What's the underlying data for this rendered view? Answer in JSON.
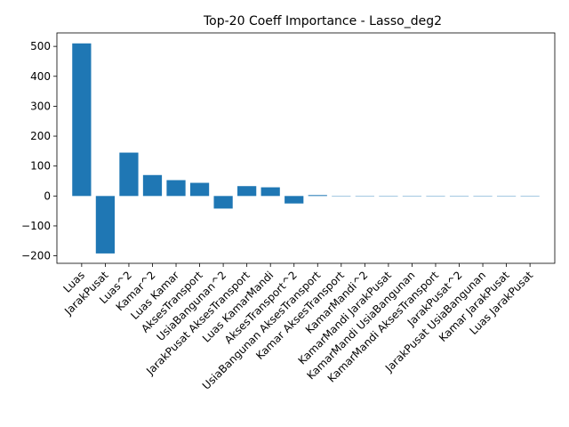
{
  "chart_data": {
    "type": "bar",
    "title": "Top-20 Coeff Importance - Lasso_deg2",
    "xlabel": "",
    "ylabel": "",
    "categories": [
      "Luas",
      "JarakPusat",
      "Luas^2",
      "Kamar^2",
      "Luas Kamar",
      "AksesTransport",
      "UsiaBangunan^2",
      "JarakPusat AksesTransport",
      "Luas KamarMandi",
      "AksesTransport^2",
      "UsiaBangunan AksesTransport",
      "Kamar AksesTransport",
      "KamarMandi^2",
      "KamarMandi JarakPusat",
      "KamarMandi UsiaBangunan",
      "KamarMandi AksesTransport",
      "JarakPusat^2",
      "JarakPusat UsiaBangunan",
      "Kamar JarakPusat",
      "Luas JarakPusat"
    ],
    "values": [
      510,
      -192,
      145,
      70,
      53,
      44,
      -42,
      33,
      29,
      -25,
      3,
      0,
      0,
      0,
      0,
      0,
      0,
      0,
      0,
      0
    ],
    "ylim": [
      -225,
      545
    ],
    "yticks": [
      -200,
      -100,
      0,
      100,
      200,
      300,
      400,
      500
    ],
    "ytick_labels": [
      "−200",
      "−100",
      "0",
      "100",
      "200",
      "300",
      "400",
      "500"
    ],
    "bar_color": "#1f77b4",
    "grid": false,
    "legend": "none"
  }
}
